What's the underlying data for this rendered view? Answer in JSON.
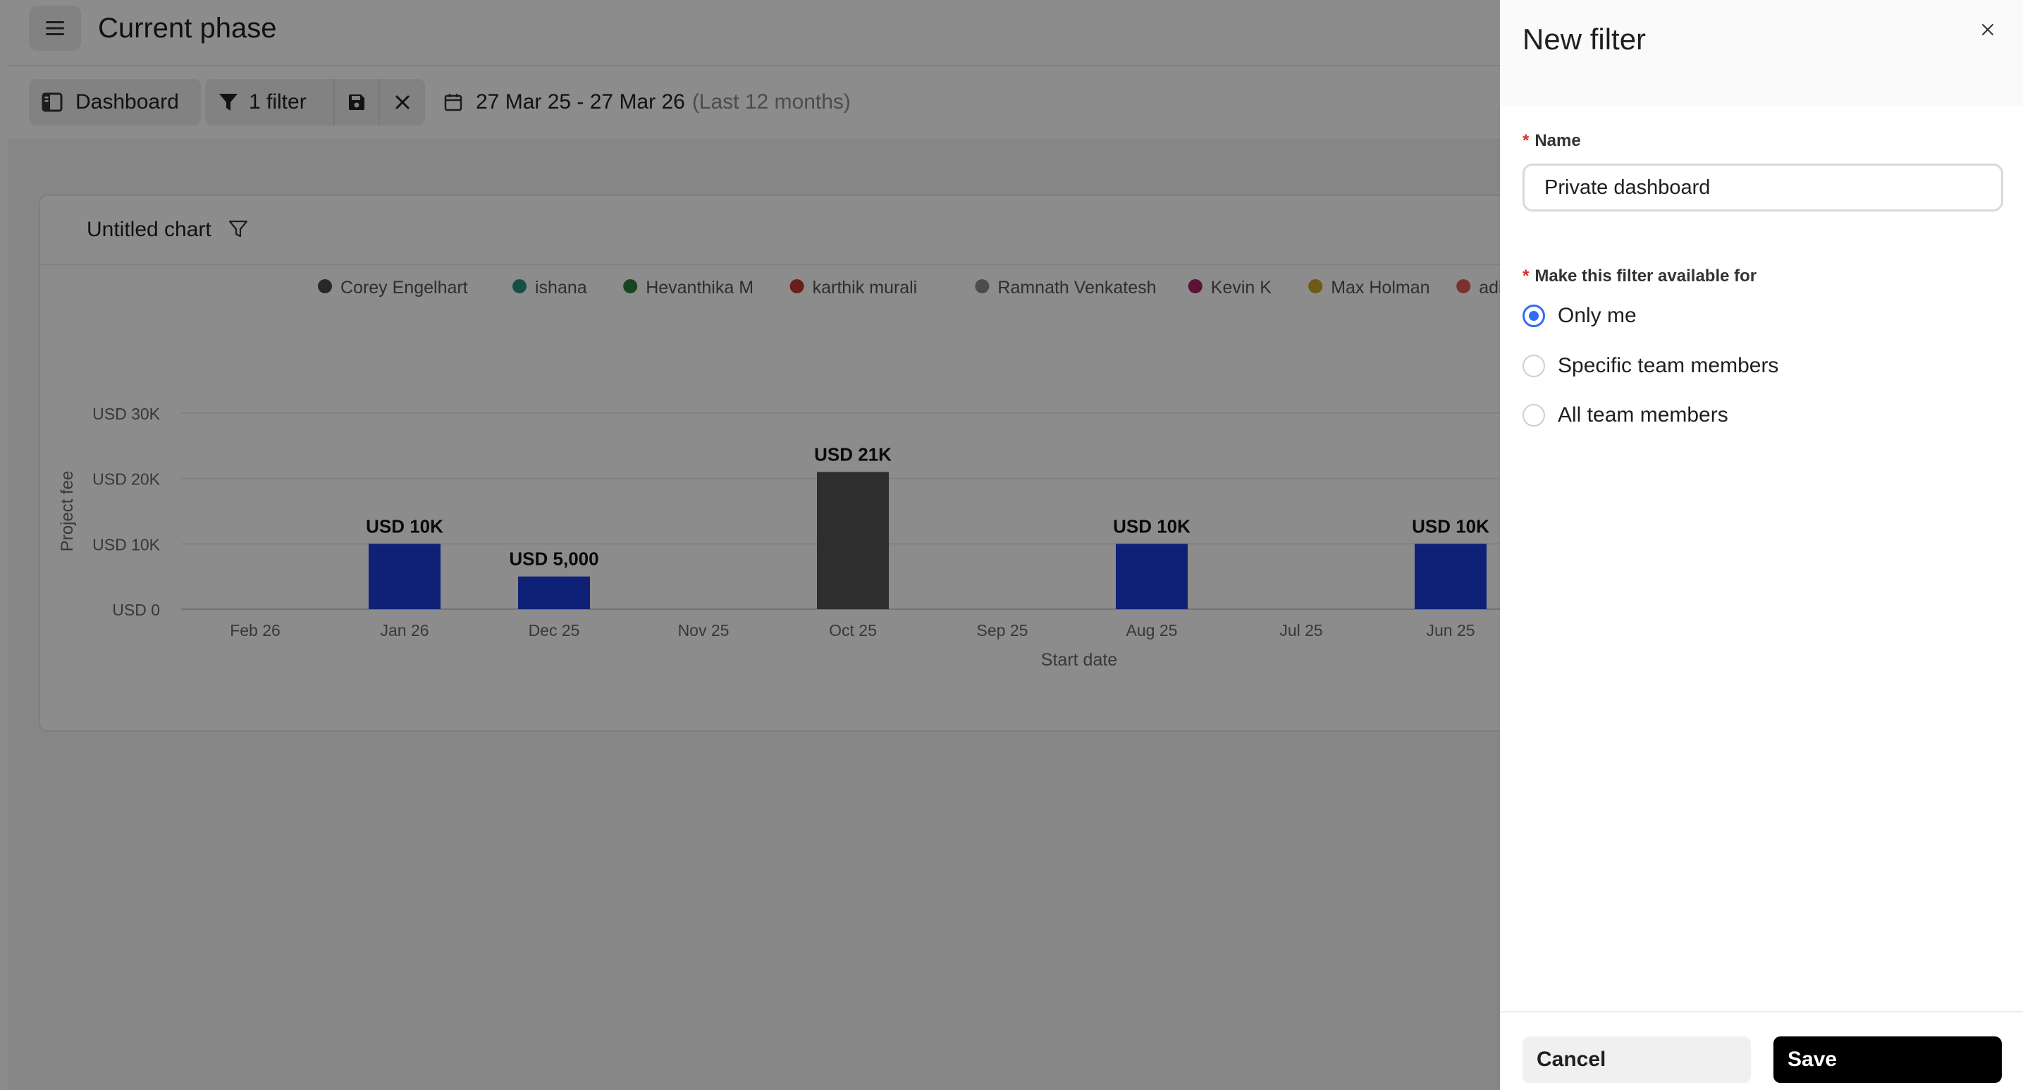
{
  "header": {
    "title": "Current phase",
    "menu_icon": "hamburger-icon"
  },
  "toolbar": {
    "dashboard_label": "Dashboard",
    "filter_label": "1 filter",
    "date_range": "27 Mar 25 - 27 Mar 26",
    "date_range_sub": "(Last 12 months)"
  },
  "chart": {
    "title": "Untitled chart"
  },
  "chart_data": {
    "type": "bar",
    "title": "Untitled chart",
    "xlabel": "Start date",
    "ylabel": "Project fee",
    "categories": [
      "Feb 26",
      "Jan 26",
      "Dec 25",
      "Nov 25",
      "Oct 25",
      "Sep 25",
      "Aug 25",
      "Jul 25",
      "Jun 25"
    ],
    "values": [
      0,
      10000,
      5000,
      0,
      21000,
      0,
      10000,
      0,
      10000
    ],
    "data_labels": [
      "",
      "USD 10K",
      "USD 5,000",
      "",
      "USD 21K",
      "",
      "USD 10K",
      "",
      "USD 10K"
    ],
    "bar_colors": [
      "#1b3cd9",
      "#1b3cd9",
      "#1b3cd9",
      "#1b3cd9",
      "#555555",
      "#1b3cd9",
      "#1b3cd9",
      "#1b3cd9",
      "#1b3cd9"
    ],
    "ylim": [
      0,
      30000
    ],
    "yticks": [
      0,
      10000,
      20000,
      30000
    ],
    "ytick_labels": [
      "USD 0",
      "USD 10K",
      "USD 20K",
      "USD 30K"
    ],
    "grid": true,
    "legend_position": "top",
    "legend": [
      {
        "name": "Corey Engelhart",
        "color": "#4a4a4a"
      },
      {
        "name": "ishana",
        "color": "#2f8f83"
      },
      {
        "name": "Hevanthika M",
        "color": "#2f7d3a"
      },
      {
        "name": "karthik murali",
        "color": "#c0392b"
      },
      {
        "name": "Ramnath Venkatesh",
        "color": "#8a8a8a"
      },
      {
        "name": "Kevin K",
        "color": "#a3245f"
      },
      {
        "name": "Max Holman",
        "color": "#c9a227"
      },
      {
        "name": "aditya Nagar",
        "color": "#e05a5a"
      }
    ]
  },
  "drawer": {
    "title": "New filter",
    "name_label": "Name",
    "name_value": "Private dashboard",
    "availability_label": "Make this filter available for",
    "options": [
      {
        "label": "Only me",
        "checked": true
      },
      {
        "label": "Specific team members",
        "checked": false
      },
      {
        "label": "All team members",
        "checked": false
      }
    ],
    "cancel_label": "Cancel",
    "save_label": "Save"
  }
}
